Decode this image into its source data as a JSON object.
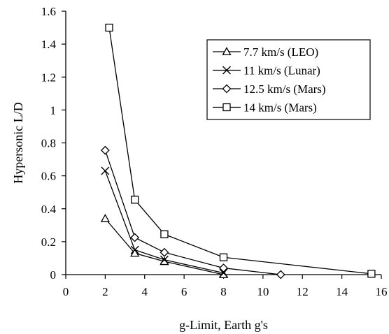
{
  "chart_data": {
    "type": "line",
    "title": "",
    "xlabel": "g-Limit, Earth g's",
    "ylabel": "Hypersonic L/D",
    "xlim": [
      0,
      16
    ],
    "ylim": [
      0,
      1.6
    ],
    "xticks": [
      0,
      2,
      4,
      6,
      8,
      10,
      12,
      14,
      16
    ],
    "yticks": [
      0,
      0.2,
      0.4,
      0.6,
      0.8,
      1,
      1.2,
      1.4,
      1.6
    ],
    "xtick_labels": [
      "0",
      "2",
      "4",
      "6",
      "8",
      "10",
      "12",
      "14",
      "16"
    ],
    "ytick_labels": [
      "0",
      "0.2",
      "0.4",
      "0.6",
      "0.8",
      "1",
      "1.2",
      "1.4",
      "1.6"
    ],
    "grid": false,
    "legend_position": "top-right",
    "series": [
      {
        "name": "7.7 km/s (LEO)",
        "marker": "triangle",
        "points": [
          [
            2.0,
            0.34
          ],
          [
            3.5,
            0.13
          ],
          [
            5.0,
            0.08
          ],
          [
            8.0,
            0.0
          ]
        ]
      },
      {
        "name": "11 km/s (Lunar)",
        "marker": "x",
        "points": [
          [
            2.0,
            0.63
          ],
          [
            3.5,
            0.15
          ],
          [
            5.0,
            0.09
          ],
          [
            8.0,
            0.01
          ]
        ]
      },
      {
        "name": "12.5 km/s (Mars)",
        "marker": "diamond",
        "points": [
          [
            2.0,
            0.755
          ],
          [
            3.5,
            0.225
          ],
          [
            5.0,
            0.135
          ],
          [
            8.0,
            0.04
          ],
          [
            10.9,
            0.0
          ]
        ]
      },
      {
        "name": "14 km/s (Mars)",
        "marker": "square",
        "points": [
          [
            2.2,
            1.5
          ],
          [
            3.5,
            0.455
          ],
          [
            5.0,
            0.245
          ],
          [
            8.0,
            0.105
          ],
          [
            15.5,
            0.005
          ]
        ]
      }
    ]
  }
}
